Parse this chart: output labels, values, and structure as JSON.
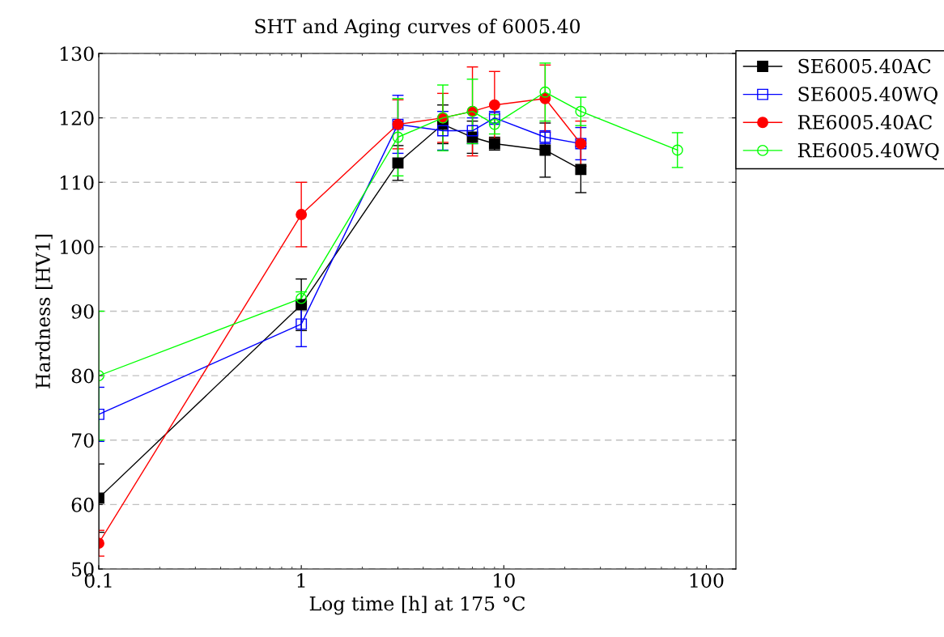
{
  "chart_data": {
    "type": "line",
    "title": "SHT and Aging curves of 6005.40",
    "xlabel": "Log time [h] at 175 °C",
    "ylabel": "Hardness [HV1]",
    "log": "x",
    "xlim": [
      0.1,
      140
    ],
    "xticks": [
      {
        "value": 0.1,
        "label": "0.1"
      },
      1,
      10,
      100
    ],
    "ylim": [
      50,
      130
    ],
    "yticks": [
      50,
      60,
      70,
      80,
      90,
      100,
      110,
      120,
      130
    ],
    "grid": "y",
    "legend": "top right",
    "series": [
      {
        "name": "SE6005.40AC",
        "color": "#000000",
        "marker": "square",
        "x": [
          0.1,
          1,
          3,
          5,
          7,
          9,
          16,
          24
        ],
        "values": [
          61,
          91,
          113,
          119,
          117,
          116,
          115,
          112
        ],
        "errors": [
          5.3,
          4,
          2.7,
          3,
          2.5,
          1,
          4.2,
          3.6
        ]
      },
      {
        "name": "SE6005.40WQ",
        "color": "#0000ff",
        "marker": "square_open",
        "x": [
          0.1,
          1,
          3,
          5,
          7,
          9,
          16,
          24
        ],
        "values": [
          74,
          88,
          119,
          118,
          118,
          120,
          117,
          116
        ],
        "errors": [
          4.2,
          3.5,
          4.5,
          3,
          2,
          1,
          1,
          2.5
        ]
      },
      {
        "name": "RE6005.40AC",
        "color": "#ff0000",
        "marker": "circle",
        "x": [
          0.1,
          1,
          3,
          5,
          7,
          9,
          16,
          24
        ],
        "values": [
          54,
          105,
          119,
          120,
          121,
          122,
          123,
          116
        ],
        "errors": [
          2,
          5,
          3.8,
          3.8,
          6.9,
          5.2,
          5.2,
          3.5
        ]
      },
      {
        "name": "RE6005.40WQ",
        "color": "#00ff00",
        "marker": "circle_open",
        "x": [
          0.1,
          1,
          3,
          5,
          7,
          9,
          16,
          24,
          72
        ],
        "values": [
          80,
          92,
          117,
          120,
          121,
          119,
          124,
          121,
          115
        ],
        "errors": [
          10,
          1,
          6,
          5.1,
          5,
          1.5,
          4.5,
          2.2,
          2.7
        ]
      }
    ]
  }
}
